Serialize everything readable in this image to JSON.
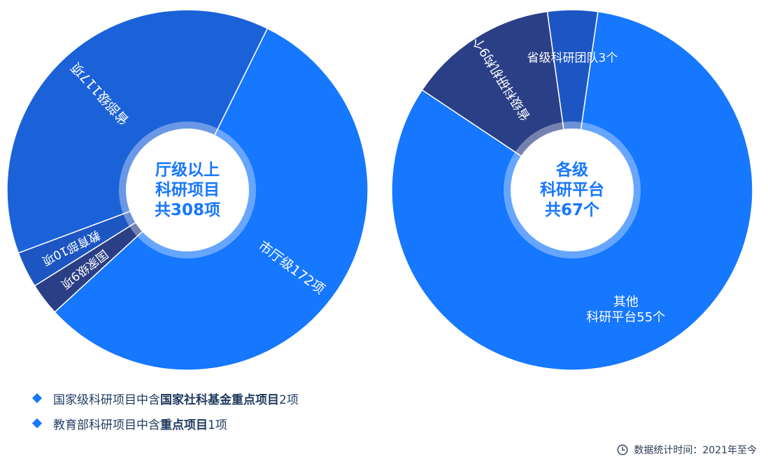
{
  "chart_data": [
    {
      "type": "pie",
      "center_label": [
        "厅级以上",
        "科研项目",
        "共308项"
      ],
      "slices": [
        {
          "label": "市厅级172项",
          "value": 172,
          "color": "#1677ff"
        },
        {
          "label": "国家级9项",
          "value": 9,
          "color": "#2b3f86"
        },
        {
          "label": "教育部10项",
          "value": 10,
          "color": "#1d56c2"
        },
        {
          "label": "省部级117项",
          "value": 117,
          "color": "#1b62d9"
        }
      ]
    },
    {
      "type": "pie",
      "center_label": [
        "各级",
        "科研平台",
        "共67个"
      ],
      "slices": [
        {
          "label": "其他\n科研平台55个",
          "value": 55,
          "color": "#1677ff"
        },
        {
          "label": "省级科研机构9个",
          "value": 9,
          "color": "#2b3f86"
        },
        {
          "label": "省级科研团队3个",
          "value": 3,
          "color": "#1d56c2"
        }
      ]
    }
  ],
  "notes": [
    {
      "prefix": "国家级科研项目中含",
      "bold": "国家社科基金重点项目",
      "suffix": "2项"
    },
    {
      "prefix": "教育部科研项目中含",
      "bold": "重点项目",
      "suffix": "1项"
    }
  ],
  "footer": {
    "text": "数据统计时间：2021年至今",
    "icon": "clock-icon"
  },
  "colors": {
    "accent": "#1677ff",
    "dark": "#2b3f86",
    "mid": "#1b62d9",
    "notes_text": "#1f3a5f"
  }
}
